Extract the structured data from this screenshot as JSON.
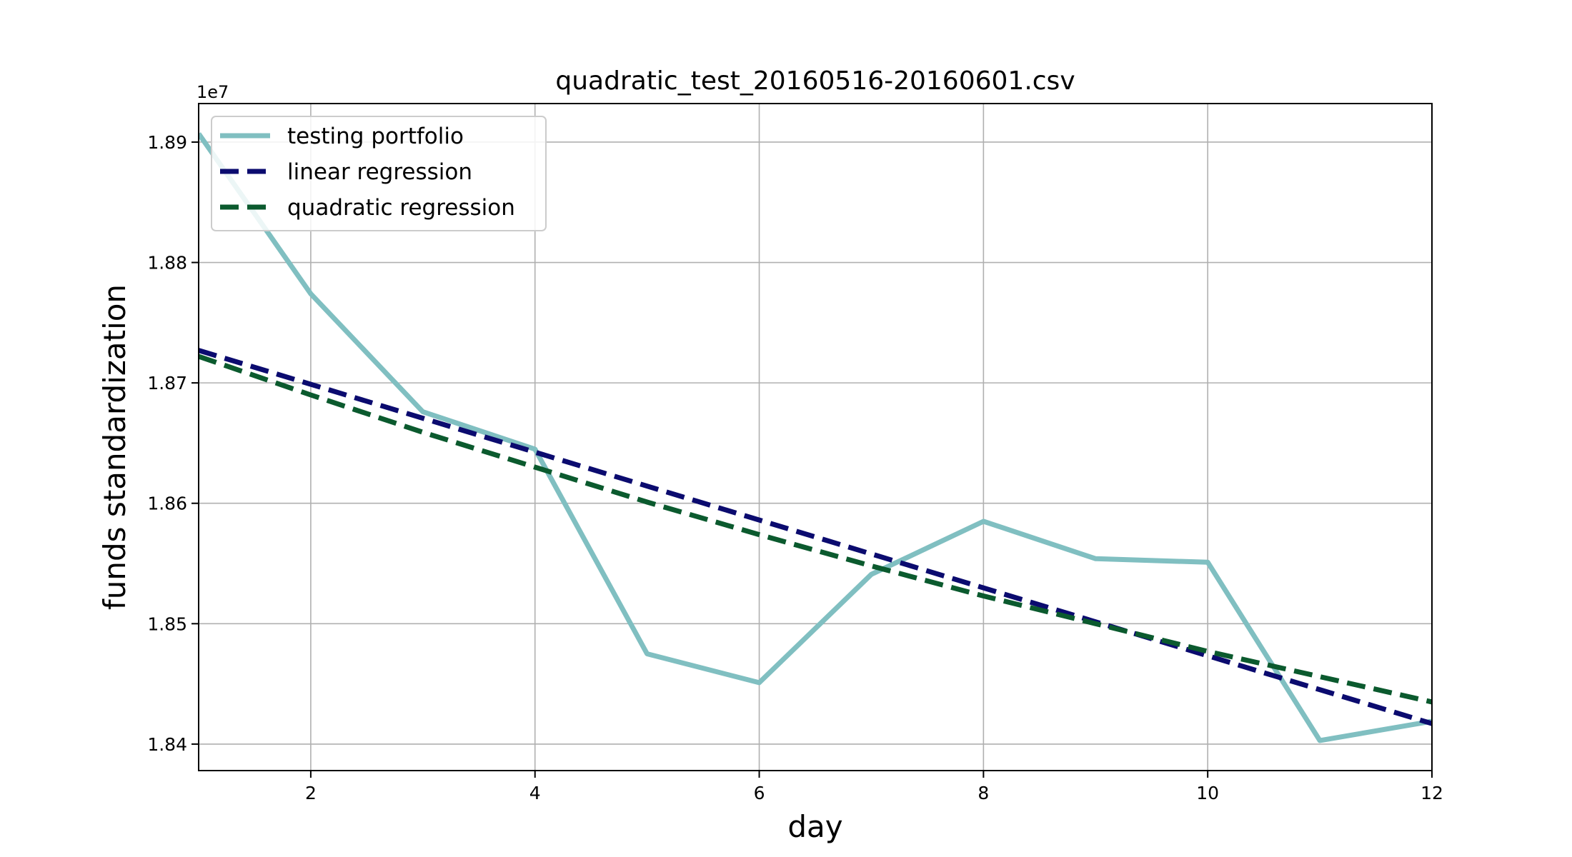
{
  "chart_data": {
    "type": "line",
    "title": "quadratic_test_20160516-20160601.csv",
    "xlabel": "day",
    "ylabel": "funds standardization",
    "y_offset_label": "1e7",
    "xlim": [
      1,
      12
    ],
    "ylim": [
      1.8378,
      1.8932
    ],
    "x_ticks": [
      2,
      4,
      6,
      8,
      10,
      12
    ],
    "x_tick_labels": [
      "2",
      "4",
      "6",
      "8",
      "10",
      "12"
    ],
    "y_ticks": [
      1.84,
      1.85,
      1.86,
      1.87,
      1.88,
      1.89
    ],
    "y_tick_labels": [
      "1.84",
      "1.85",
      "1.86",
      "1.87",
      "1.88",
      "1.89"
    ],
    "grid": true,
    "legend_position": "top-left",
    "series": [
      {
        "name": "testing portfolio",
        "color": "#80bfc1",
        "style": "solid",
        "x": [
          1,
          2,
          3,
          4,
          5,
          6,
          7,
          8,
          9,
          10,
          11,
          12
        ],
        "y": [
          1.8907,
          1.8774,
          1.8676,
          1.8645,
          1.8475,
          1.8451,
          1.8541,
          1.8585,
          1.8554,
          1.8551,
          1.8403,
          1.8419
        ]
      },
      {
        "name": "linear regression",
        "color": "#0b0b6f",
        "style": "dashed",
        "x": [
          1,
          12
        ],
        "y": [
          1.8727,
          1.8417
        ]
      },
      {
        "name": "quadratic regression",
        "color": "#0b5a2e",
        "style": "dashed",
        "x": [
          1,
          2,
          3,
          4,
          5,
          6,
          7,
          8,
          9,
          10,
          11,
          12
        ],
        "y": [
          1.8722,
          1.869,
          1.8659,
          1.863,
          1.8601,
          1.8574,
          1.8548,
          1.8523,
          1.85,
          1.8477,
          1.8456,
          1.8435
        ]
      }
    ]
  }
}
